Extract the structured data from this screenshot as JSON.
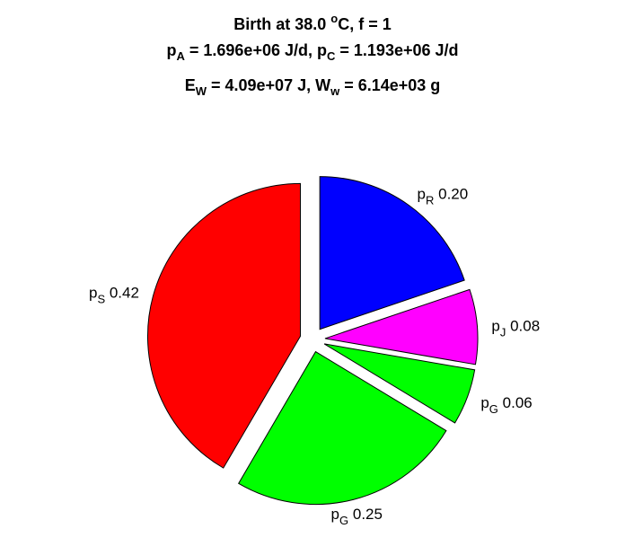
{
  "title": {
    "line1": {
      "text": "Birth at 38.0 ",
      "sup": "o",
      "after": "C, f = 1"
    },
    "line2": {
      "a_base": "p",
      "a_sub": "A",
      "a_val": " = 1.696e+06 J/d, ",
      "c_base": "p",
      "c_sub": "C",
      "c_val": " = 1.193e+06 J/d"
    },
    "line3": {
      "e_base": "E",
      "e_sub": "W",
      "e_val": " = 4.09e+07 J, ",
      "w_base": "W",
      "w_sub": "w",
      "w_val": " = 6.14e+03 g"
    }
  },
  "chart_data": {
    "type": "pie",
    "exploded": true,
    "slices": [
      {
        "base": "p",
        "sub": "R",
        "value": "0.20",
        "fraction": 0.2,
        "color": "#0000ff"
      },
      {
        "base": "p",
        "sub": "J",
        "value": "0.08",
        "fraction": 0.08,
        "color": "#ff00ff"
      },
      {
        "base": "p",
        "sub": "G",
        "value": "0.06",
        "fraction": 0.06,
        "color": "#00ff00"
      },
      {
        "base": "p",
        "sub": "G",
        "value": "0.25",
        "fraction": 0.25,
        "color": "#00ff00"
      },
      {
        "base": "p",
        "sub": "S",
        "value": "0.42",
        "fraction": 0.42,
        "color": "#ff0000"
      }
    ]
  }
}
